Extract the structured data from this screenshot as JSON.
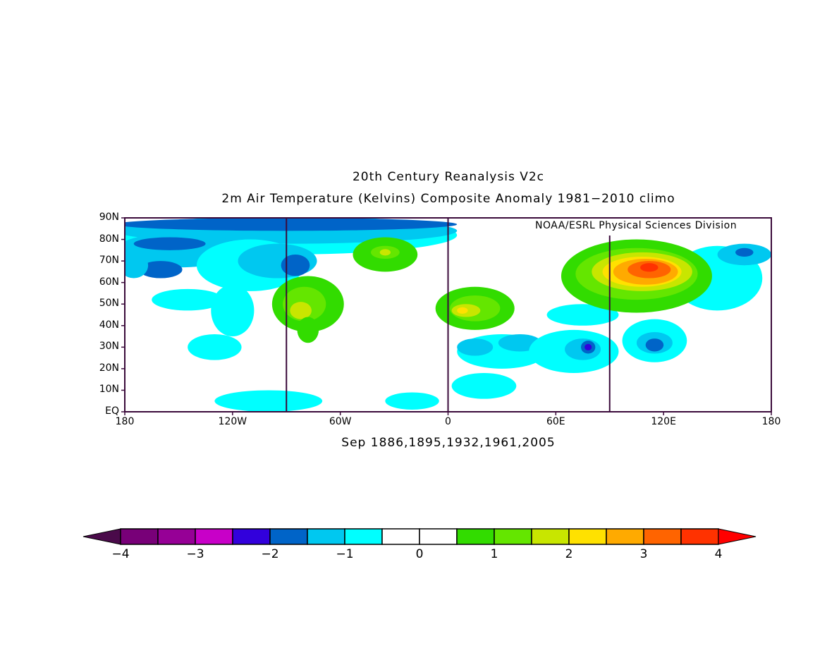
{
  "title": "20th Century Reanalysis V2c",
  "subtitle": "2m Air Temperature (Kelvins) Composite Anomaly 1981−2010 climo",
  "credit": "NOAA/ESRL Physical Sciences Division",
  "caption": "Sep 1886,1895,1932,1961,2005",
  "map": {
    "lat_labels": [
      "90N",
      "80N",
      "70N",
      "60N",
      "50N",
      "40N",
      "30N",
      "20N",
      "10N",
      "EQ"
    ],
    "lon_labels": [
      "180",
      "120W",
      "60W",
      "0",
      "60E",
      "120E",
      "180"
    ],
    "extent": {
      "lon": [
        -180,
        180
      ],
      "lat": [
        0,
        90
      ]
    }
  },
  "colorbar": {
    "colors": [
      "#4a0a4a",
      "#780078",
      "#960096",
      "#c800c8",
      "#3200dc",
      "#0064c8",
      "#00c8f0",
      "#00ffff",
      "#ffffff",
      "#ffffff",
      "#32dc00",
      "#64e600",
      "#c8e600",
      "#ffe100",
      "#ffaa00",
      "#ff6400",
      "#ff3200",
      "#ff0000"
    ],
    "labels": [
      "−4",
      "−3",
      "−2",
      "−1",
      "0",
      "1",
      "2",
      "3",
      "4"
    ]
  }
}
